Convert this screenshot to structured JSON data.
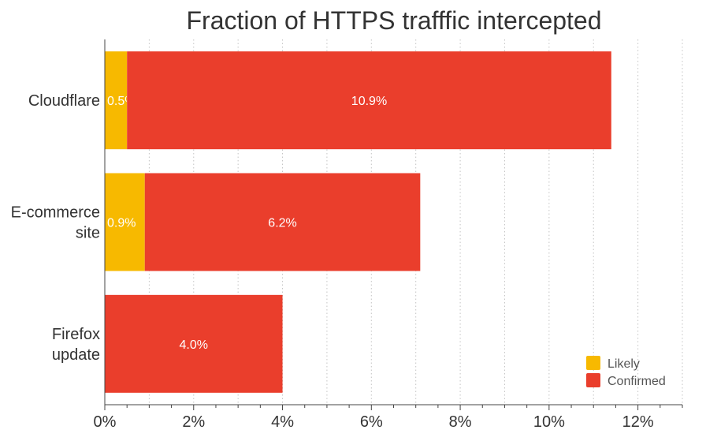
{
  "chart_data": {
    "type": "bar",
    "orientation": "horizontal",
    "stacked": true,
    "title": "Fraction of HTTPS trafffic intercepted",
    "categories": [
      [
        "Cloudflare"
      ],
      [
        "E-commerce",
        "site"
      ],
      [
        "Firefox",
        "update"
      ]
    ],
    "series": [
      {
        "name": "Likely",
        "color": "#F7B900",
        "values": [
          0.5,
          0.9,
          0
        ],
        "labels": [
          "0.5%",
          "0.9%",
          ""
        ]
      },
      {
        "name": "Confirmed",
        "color": "#EA3E2C",
        "values": [
          10.9,
          6.2,
          4.0
        ],
        "labels": [
          "10.9%",
          "6.2%",
          "4.0%"
        ]
      }
    ],
    "xlim": [
      0,
      13
    ],
    "xticks": [
      0,
      2,
      4,
      6,
      8,
      10,
      12
    ],
    "xtick_labels": [
      "0%",
      "2%",
      "4%",
      "6%",
      "8%",
      "10%",
      "12%"
    ],
    "grid": true,
    "legend": "bottom-right"
  }
}
